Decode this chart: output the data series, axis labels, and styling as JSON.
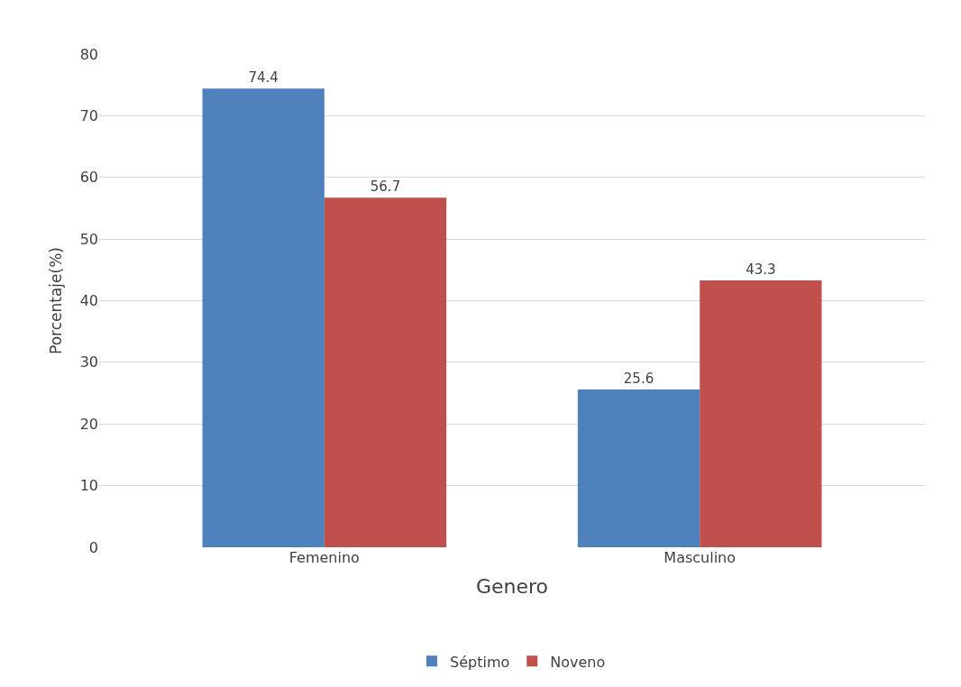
{
  "chart_data": {
    "type": "bar",
    "xlabel": "Genero",
    "ylabel": "Porcentaje(%)",
    "categories": [
      "Femenino",
      "Masculino"
    ],
    "series": [
      {
        "name": "Séptimo",
        "color": "#4f81bd",
        "values": [
          74.4,
          25.6
        ]
      },
      {
        "name": "Noveno",
        "color": "#c0504d",
        "values": [
          56.7,
          43.3
        ]
      }
    ],
    "ylim": [
      0,
      80
    ],
    "yticks": [
      0,
      10,
      20,
      30,
      40,
      50,
      60,
      70,
      80
    ],
    "grid": "y",
    "legend": "bottom",
    "data_labels": true
  }
}
